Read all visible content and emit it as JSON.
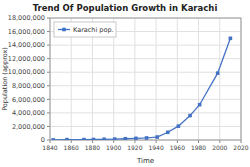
{
  "chart_data": {
    "type": "line",
    "title": "Trend Of Population Growth in Karachi",
    "x_label": "Time",
    "y_label": "Population (approx)",
    "x": [
      1843,
      1856,
      1872,
      1881,
      1891,
      1901,
      1911,
      1921,
      1931,
      1941,
      1951,
      1961,
      1972,
      1981,
      1998,
      2010
    ],
    "series": [
      {
        "name": "Karachi pop.",
        "color": "#4472c4",
        "marker": "square",
        "values": [
          14000,
          57000,
          56753,
          73560,
          105199,
          136297,
          186771,
          244162,
          300000,
          435887,
          1137667,
          2044044,
          3606600,
          5208132,
          9856318,
          15000000
        ]
      }
    ],
    "xlim": [
      1840,
      2020
    ],
    "ylim": [
      0,
      18000000
    ],
    "xticks": [
      1840,
      1860,
      1880,
      1900,
      1920,
      1940,
      1960,
      1980,
      2000,
      2020
    ],
    "yticks": [
      0,
      {
        "value": 2000000,
        "label": "2,000,000"
      },
      {
        "value": 4000000,
        "label": "4,000,000"
      },
      {
        "value": 6000000,
        "label": "6,000,000"
      },
      {
        "value": 8000000,
        "label": "8,000,000"
      },
      {
        "value": 10000000,
        "label": "10,000,000"
      },
      {
        "value": 12000000,
        "label": "12,000,000"
      },
      {
        "value": 14000000,
        "label": "14,000,000"
      },
      {
        "value": 16000000,
        "label": "16,000,000"
      },
      {
        "value": 18000000,
        "label": "18,000,000"
      }
    ],
    "grid": true,
    "legend": "upper left"
  }
}
